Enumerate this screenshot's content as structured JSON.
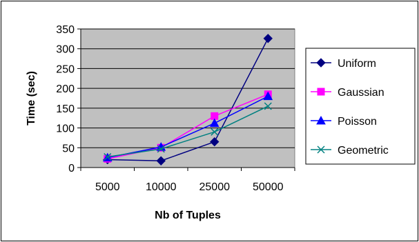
{
  "chart_data": {
    "type": "line",
    "title": "",
    "xlabel": "Nb of Tuples",
    "ylabel": "Time (sec)",
    "categories": [
      "5000",
      "10000",
      "25000",
      "50000"
    ],
    "ylim": [
      0,
      350
    ],
    "yticks": [
      0,
      50,
      100,
      150,
      200,
      250,
      300,
      350
    ],
    "grid": "horizontal",
    "plot_background": "#c0c0c0",
    "legend_position": "right",
    "series": [
      {
        "name": "Uniform",
        "values": [
          20,
          17,
          65,
          326
        ],
        "color": "#000080",
        "marker": "diamond"
      },
      {
        "name": "Gaussian",
        "values": [
          22,
          50,
          130,
          185
        ],
        "color": "#ff00ff",
        "marker": "square"
      },
      {
        "name": "Poisson",
        "values": [
          25,
          52,
          112,
          180
        ],
        "color": "#0000ff",
        "marker": "triangle"
      },
      {
        "name": "Geometric",
        "values": [
          27,
          47,
          90,
          155
        ],
        "color": "#008080",
        "marker": "x"
      }
    ]
  }
}
